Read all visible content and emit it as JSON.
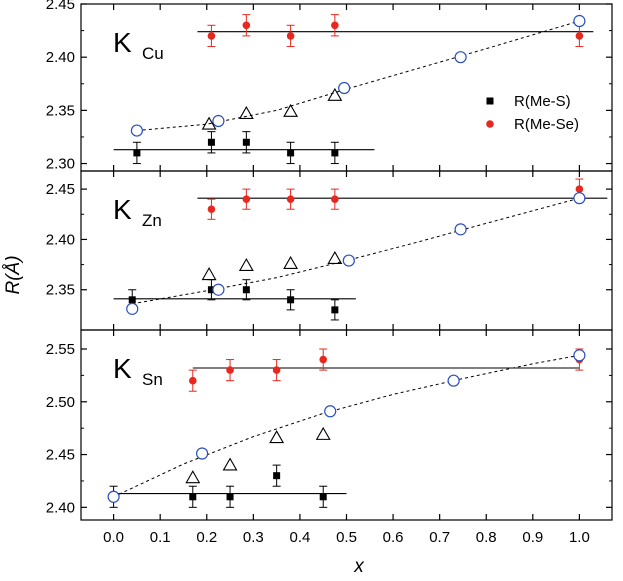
{
  "chart_data": {
    "type": "scatter",
    "xlabel": "x",
    "ylabel": "R(Å)",
    "x_ticks": [
      "0.0",
      "0.1",
      "0.2",
      "0.3",
      "0.4",
      "0.5",
      "0.6",
      "0.7",
      "0.8",
      "0.9",
      "1.0"
    ],
    "xlim": [
      -0.07,
      1.07
    ],
    "legend": {
      "placement": "top-right of top panel",
      "entries": [
        {
          "label": "R(Me-S)",
          "marker": "filled-square",
          "color": "#000000"
        },
        {
          "label": "R(Me-Se)",
          "marker": "filled-circle",
          "color": "#e8281e"
        }
      ]
    },
    "colors": {
      "me_s": "#000000",
      "me_se": "#e8281e",
      "open_circle": "#2a4fc0",
      "triangle": "#000000"
    },
    "panels": [
      {
        "label": "K",
        "label_sub": "Cu",
        "ylim": [
          2.293,
          2.45
        ],
        "y_ticks": [
          "2.30",
          "2.35",
          "2.40",
          "2.45"
        ],
        "me_s": {
          "x": [
            0.05,
            0.21,
            0.285,
            0.38,
            0.475
          ],
          "y": [
            2.31,
            2.32,
            2.32,
            2.31,
            2.31
          ],
          "err": [
            0.01,
            0.01,
            0.01,
            0.01,
            0.01
          ]
        },
        "me_se": {
          "x": [
            0.21,
            0.285,
            0.38,
            0.475,
            1.0
          ],
          "y": [
            2.42,
            2.43,
            2.42,
            2.43,
            2.42
          ],
          "err": [
            0.01,
            0.01,
            0.01,
            0.01,
            0.01
          ]
        },
        "open_circles": {
          "x": [
            0.05,
            0.225,
            0.495,
            0.745,
            1.0
          ],
          "y": [
            2.331,
            2.34,
            2.371,
            2.4,
            2.434
          ]
        },
        "triangles": {
          "x": [
            0.205,
            0.285,
            0.38,
            0.475
          ],
          "y": [
            2.337,
            2.347,
            2.349,
            2.364
          ]
        },
        "fit_me_s": {
          "x": [
            0.0,
            0.56
          ],
          "y": [
            2.313,
            2.313
          ]
        },
        "fit_me_se": {
          "x": [
            0.18,
            1.03
          ],
          "y": [
            2.424,
            2.424
          ]
        },
        "dashed_curve": {
          "x": [
            0.05,
            0.2,
            0.35,
            0.5,
            0.65,
            0.8,
            1.0
          ],
          "y": [
            2.331,
            2.337,
            2.35,
            2.37,
            2.389,
            2.408,
            2.434
          ]
        }
      },
      {
        "label": "K",
        "label_sub": "Zn",
        "ylim": [
          2.31,
          2.468
        ],
        "y_ticks": [
          "2.35",
          "2.40",
          "2.45"
        ],
        "me_s": {
          "x": [
            0.04,
            0.21,
            0.285,
            0.38,
            0.475
          ],
          "y": [
            2.34,
            2.35,
            2.35,
            2.34,
            2.33
          ],
          "err": [
            0.01,
            0.01,
            0.01,
            0.01,
            0.01
          ]
        },
        "me_se": {
          "x": [
            0.21,
            0.285,
            0.38,
            0.475,
            1.0
          ],
          "y": [
            2.43,
            2.44,
            2.44,
            2.44,
            2.45
          ],
          "err": [
            0.01,
            0.01,
            0.01,
            0.01,
            0.01
          ]
        },
        "open_circles": {
          "x": [
            0.04,
            0.225,
            0.505,
            0.745,
            1.0
          ],
          "y": [
            2.331,
            2.35,
            2.379,
            2.41,
            2.441
          ]
        },
        "triangles": {
          "x": [
            0.205,
            0.285,
            0.38,
            0.475
          ],
          "y": [
            2.365,
            2.374,
            2.376,
            2.381
          ]
        },
        "fit_me_s": {
          "x": [
            0.0,
            0.52
          ],
          "y": [
            2.341,
            2.341
          ]
        },
        "fit_me_se": {
          "x": [
            0.18,
            1.06
          ],
          "y": [
            2.441,
            2.441
          ]
        },
        "dashed_curve": {
          "x": [
            0.04,
            0.2,
            0.35,
            0.5,
            0.65,
            0.8,
            1.0
          ],
          "y": [
            2.336,
            2.349,
            2.362,
            2.379,
            2.397,
            2.416,
            2.441
          ]
        }
      },
      {
        "label": "K",
        "label_sub": "Sn",
        "ylim": [
          2.388,
          2.568
        ],
        "y_ticks": [
          "2.40",
          "2.45",
          "2.50",
          "2.55"
        ],
        "me_s": {
          "x": [
            0.0,
            0.17,
            0.25,
            0.35,
            0.45
          ],
          "y": [
            2.41,
            2.41,
            2.41,
            2.43,
            2.41
          ],
          "err": [
            0.01,
            0.01,
            0.01,
            0.01,
            0.01
          ]
        },
        "me_se": {
          "x": [
            0.17,
            0.25,
            0.35,
            0.45,
            1.0
          ],
          "y": [
            2.52,
            2.53,
            2.53,
            2.54,
            2.54
          ],
          "err": [
            0.01,
            0.01,
            0.01,
            0.01,
            0.01
          ]
        },
        "open_circles": {
          "x": [
            0.0,
            0.19,
            0.465,
            0.73,
            1.0
          ],
          "y": [
            2.41,
            2.451,
            2.491,
            2.52,
            2.544
          ]
        },
        "triangles": {
          "x": [
            0.17,
            0.25,
            0.35,
            0.45
          ],
          "y": [
            2.428,
            2.44,
            2.466,
            2.469
          ]
        },
        "fit_me_s": {
          "x": [
            0.0,
            0.5
          ],
          "y": [
            2.413,
            2.413
          ]
        },
        "fit_me_se": {
          "x": [
            0.17,
            1.0
          ],
          "y": [
            2.532,
            2.532
          ]
        },
        "dashed_curve": {
          "x": [
            0.0,
            0.15,
            0.3,
            0.45,
            0.6,
            0.75,
            0.9,
            1.0
          ],
          "y": [
            2.41,
            2.441,
            2.467,
            2.489,
            2.507,
            2.522,
            2.536,
            2.544
          ]
        }
      }
    ]
  }
}
